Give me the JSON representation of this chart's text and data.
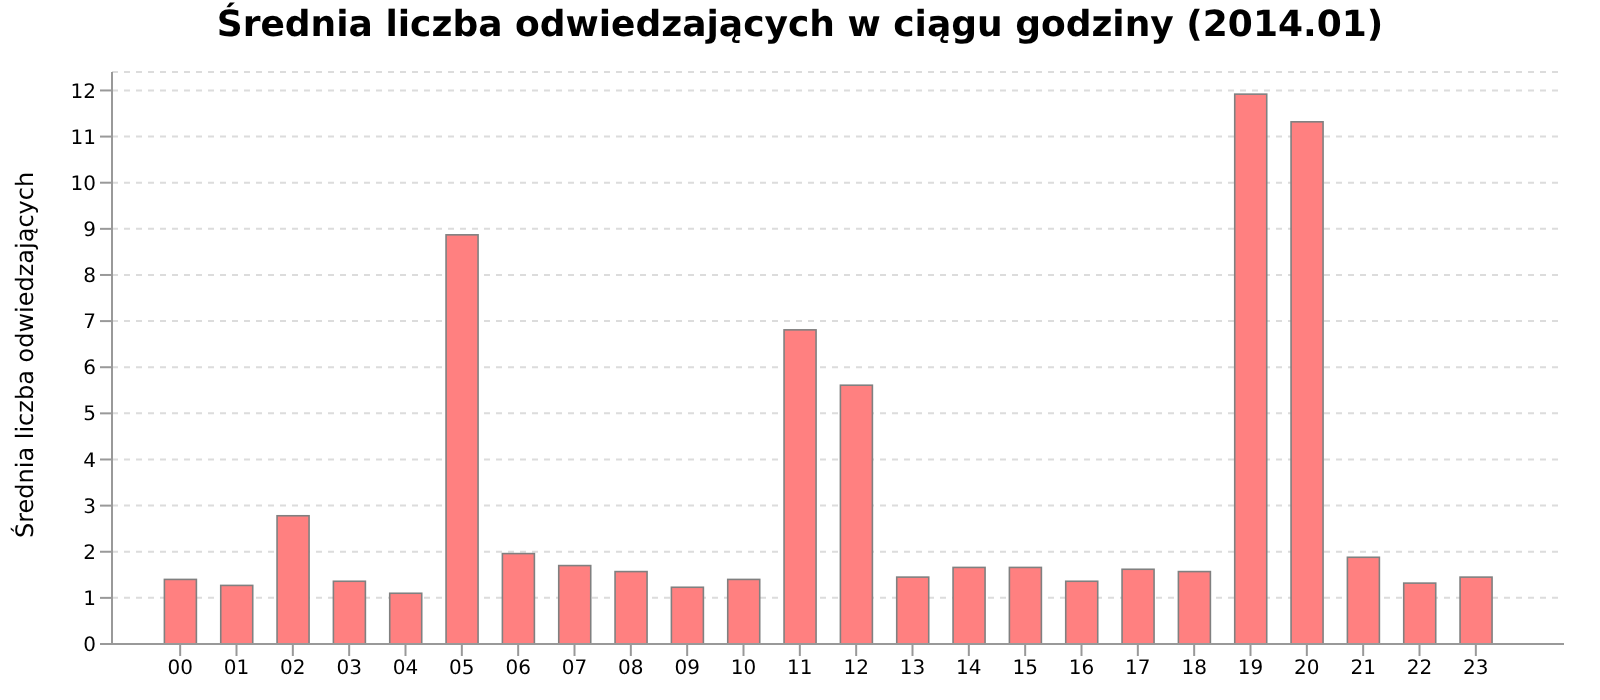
{
  "chart_data": {
    "type": "bar",
    "title": "Średnia liczba odwiedzających w ciągu godziny (2014.01)",
    "ylabel": "Średnia liczba odwiedzających",
    "categories": [
      "00",
      "01",
      "02",
      "03",
      "04",
      "05",
      "06",
      "07",
      "08",
      "09",
      "10",
      "11",
      "12",
      "13",
      "14",
      "15",
      "16",
      "17",
      "18",
      "19",
      "20",
      "21",
      "22",
      "23"
    ],
    "values": [
      1.4,
      1.27,
      2.78,
      1.36,
      1.1,
      8.87,
      1.96,
      1.7,
      1.57,
      1.23,
      1.4,
      6.81,
      5.61,
      1.45,
      1.66,
      1.66,
      1.36,
      1.62,
      1.57,
      11.92,
      11.32,
      1.88,
      1.32,
      1.45
    ],
    "color": "#ff8080",
    "ylim": [
      0,
      12.4
    ],
    "yticks": [
      0,
      1,
      2,
      3,
      4,
      5,
      6,
      7,
      8,
      9,
      10,
      11,
      12
    ],
    "grid": "y",
    "legend": false
  }
}
